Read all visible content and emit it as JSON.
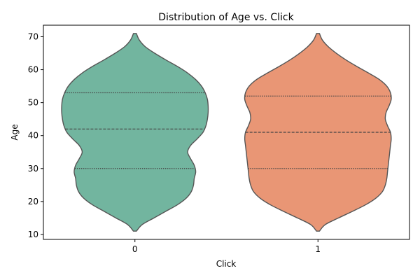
{
  "chart_data": {
    "type": "violin",
    "title": "Distribution of Age vs. Click",
    "xlabel": "Click",
    "ylabel": "Age",
    "categories": [
      "0",
      "1"
    ],
    "ylim": [
      8.5,
      73.5
    ],
    "yticks": [
      10,
      20,
      30,
      40,
      50,
      60,
      70
    ],
    "grid": false,
    "series": [
      {
        "category": "0",
        "color": "#72b59f",
        "min": 11,
        "max": 71,
        "quartiles": {
          "q1": 30,
          "median": 42,
          "q3": 53
        },
        "profile": [
          [
            11,
            0.02
          ],
          [
            13,
            0.1
          ],
          [
            15,
            0.26
          ],
          [
            17,
            0.42
          ],
          [
            19,
            0.58
          ],
          [
            21,
            0.7
          ],
          [
            23,
            0.77
          ],
          [
            25,
            0.8
          ],
          [
            27,
            0.81
          ],
          [
            29,
            0.83
          ],
          [
            31,
            0.81
          ],
          [
            33,
            0.76
          ],
          [
            35,
            0.72
          ],
          [
            37,
            0.76
          ],
          [
            39,
            0.85
          ],
          [
            41,
            0.93
          ],
          [
            43,
            0.97
          ],
          [
            45,
            0.99
          ],
          [
            47,
            1.0
          ],
          [
            49,
            1.0
          ],
          [
            51,
            0.99
          ],
          [
            53,
            0.96
          ],
          [
            55,
            0.91
          ],
          [
            57,
            0.83
          ],
          [
            59,
            0.72
          ],
          [
            61,
            0.58
          ],
          [
            63,
            0.42
          ],
          [
            65,
            0.27
          ],
          [
            67,
            0.14
          ],
          [
            69,
            0.06
          ],
          [
            71,
            0.02
          ]
        ]
      },
      {
        "category": "1",
        "color": "#e99675",
        "min": 11,
        "max": 71,
        "quartiles": {
          "q1": 30,
          "median": 41,
          "q3": 52
        },
        "profile": [
          [
            11,
            0.02
          ],
          [
            13,
            0.1
          ],
          [
            15,
            0.28
          ],
          [
            17,
            0.47
          ],
          [
            19,
            0.65
          ],
          [
            21,
            0.79
          ],
          [
            23,
            0.88
          ],
          [
            25,
            0.92
          ],
          [
            27,
            0.94
          ],
          [
            29,
            0.95
          ],
          [
            31,
            0.96
          ],
          [
            33,
            0.97
          ],
          [
            35,
            0.98
          ],
          [
            37,
            0.99
          ],
          [
            39,
            1.0
          ],
          [
            41,
            0.99
          ],
          [
            43,
            0.95
          ],
          [
            45,
            0.92
          ],
          [
            47,
            0.93
          ],
          [
            49,
            0.97
          ],
          [
            51,
            1.0
          ],
          [
            53,
            0.99
          ],
          [
            55,
            0.94
          ],
          [
            57,
            0.84
          ],
          [
            59,
            0.69
          ],
          [
            61,
            0.53
          ],
          [
            63,
            0.38
          ],
          [
            65,
            0.25
          ],
          [
            67,
            0.14
          ],
          [
            69,
            0.06
          ],
          [
            71,
            0.02
          ]
        ]
      }
    ]
  }
}
